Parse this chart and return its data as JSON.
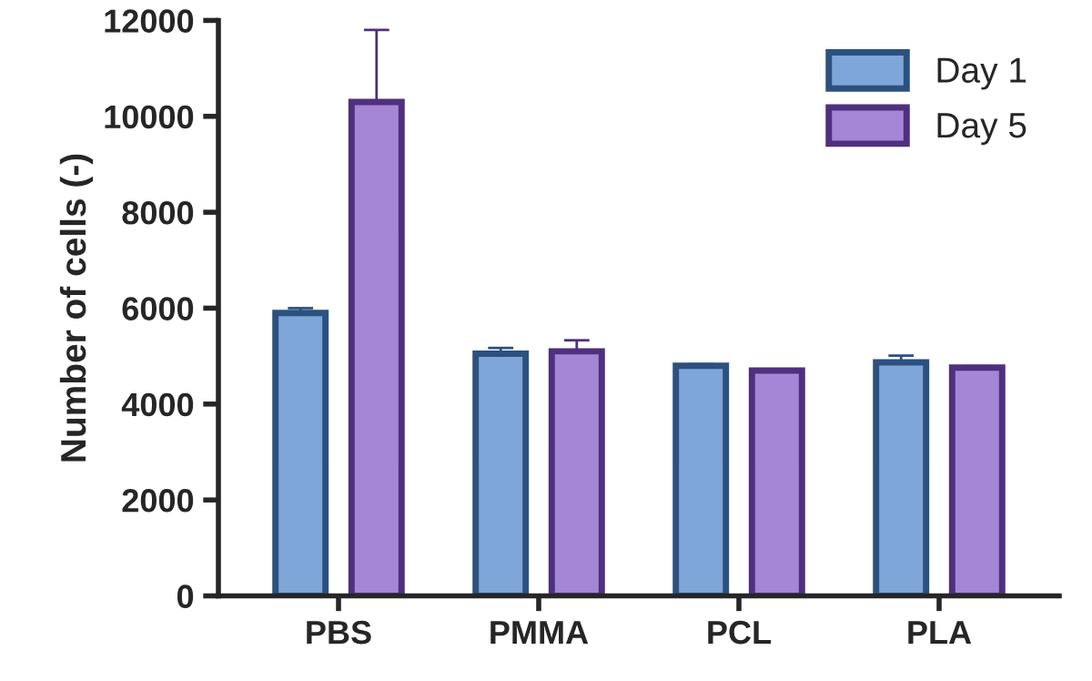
{
  "chart_data": {
    "type": "bar",
    "ylabel": "Number of cells (-)",
    "categories": [
      "PBS",
      "PMMA",
      "PCL",
      "PLA"
    ],
    "series": [
      {
        "name": "Day 1",
        "color": "#7ea6d8",
        "values": [
          5900,
          5050,
          4800,
          4870
        ],
        "errors": [
          [
            5900,
            6000
          ],
          [
            5050,
            5170
          ],
          [
            4800,
            4830
          ],
          [
            4870,
            5010
          ]
        ]
      },
      {
        "name": "Day 5",
        "color": "#a585d6",
        "values": [
          10300,
          5100,
          4700,
          4760
        ],
        "errors": [
          [
            10300,
            11800
          ],
          [
            5100,
            5330
          ],
          [
            4700,
            4730
          ],
          [
            4760,
            4790
          ]
        ]
      }
    ],
    "ylim": [
      0,
      12000
    ],
    "yticks": [
      0,
      2000,
      4000,
      6000,
      8000,
      10000,
      12000
    ],
    "grid": false,
    "legend": "top right"
  }
}
